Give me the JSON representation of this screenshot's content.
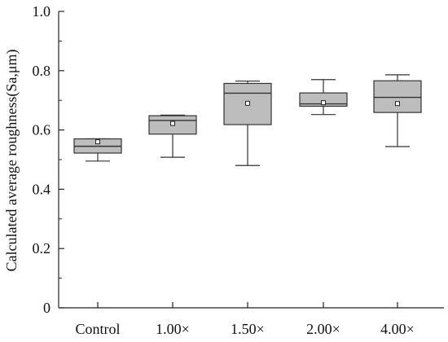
{
  "chart_data": {
    "type": "box",
    "categories": [
      "Control",
      "1.00×",
      "1.50×",
      "2.00×",
      "4.00×"
    ],
    "series": [
      {
        "boxes": [
          {
            "min": 0.495,
            "q1": 0.522,
            "median": 0.545,
            "q3": 0.57,
            "max": 0.57,
            "mean": 0.56
          },
          {
            "min": 0.508,
            "q1": 0.586,
            "median": 0.632,
            "q3": 0.648,
            "max": 0.65,
            "mean": 0.622
          },
          {
            "min": 0.48,
            "q1": 0.618,
            "median": 0.724,
            "q3": 0.757,
            "max": 0.765,
            "mean": 0.69
          },
          {
            "min": 0.652,
            "q1": 0.68,
            "median": 0.688,
            "q3": 0.725,
            "max": 0.77,
            "mean": 0.692
          },
          {
            "min": 0.544,
            "q1": 0.659,
            "median": 0.71,
            "q3": 0.766,
            "max": 0.786,
            "mean": 0.689
          }
        ]
      }
    ],
    "xlabel": "",
    "ylabel": "Calculated average roughness(Sa,μm)",
    "ylim": [
      0,
      1.0
    ],
    "yticks": [
      "0",
      "0.2",
      "0.4",
      "0.6",
      "0.8",
      "1.0"
    ],
    "grid": false,
    "colors": {
      "box_fill": "#bdbdbd",
      "stroke": "#333333"
    }
  }
}
